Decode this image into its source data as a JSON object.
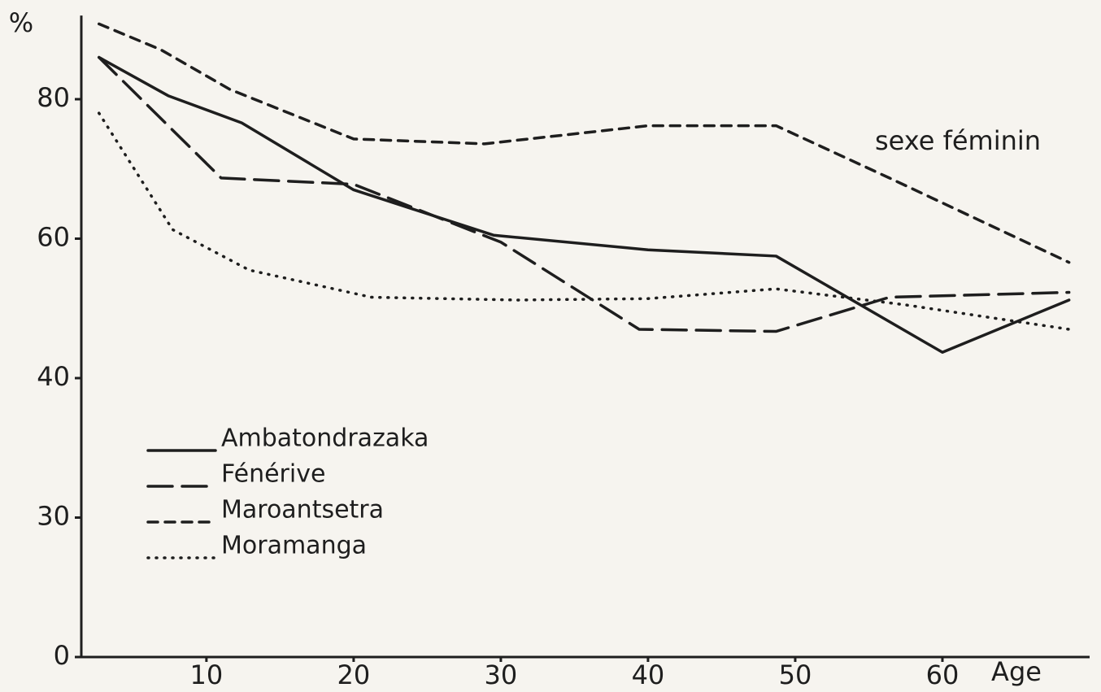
{
  "chart_data": {
    "type": "line",
    "y_label": "%",
    "x_label": "Age",
    "annotation": "sexe féminin",
    "xlim": [
      1.5,
      70
    ],
    "xticks": [
      10,
      20,
      30,
      40,
      50,
      60
    ],
    "ylim": [
      0,
      92
    ],
    "yticks": [
      0,
      30,
      40,
      60,
      80
    ],
    "color": "#1e1e1e",
    "series": [
      {
        "name": "Ambatondrazaka",
        "style": "solid",
        "x": [
          2.7,
          7.4,
          12.4,
          20,
          29.5,
          40,
          48.7,
          60,
          68.6
        ],
        "values": [
          86,
          80.5,
          76.6,
          67,
          60.5,
          58.4,
          57.5,
          43.7,
          51.2
        ]
      },
      {
        "name": "Fénérive",
        "style": "long-dash",
        "x": [
          2.7,
          11,
          20,
          30,
          39.4,
          48.7,
          56.4,
          68.6
        ],
        "values": [
          86,
          68.7,
          67.8,
          59.5,
          47,
          46.7,
          51.6,
          52.3
        ]
      },
      {
        "name": "Maroantsetra",
        "style": "short-dash",
        "x": [
          2.7,
          6.9,
          11.6,
          20,
          28.9,
          40,
          48.7,
          56.4,
          68.6
        ],
        "values": [
          90.8,
          87.1,
          81.4,
          74.3,
          73.6,
          76.2,
          76.2,
          68.7,
          56.6
        ]
      },
      {
        "name": "Moramanga",
        "style": "dotted",
        "x": [
          2.7,
          7.7,
          12.9,
          21.2,
          31.1,
          40,
          48.7,
          57.5,
          68.6
        ],
        "values": [
          78,
          61.3,
          55.5,
          51.6,
          51.2,
          51.4,
          52.8,
          50.5,
          47
        ]
      }
    ]
  }
}
